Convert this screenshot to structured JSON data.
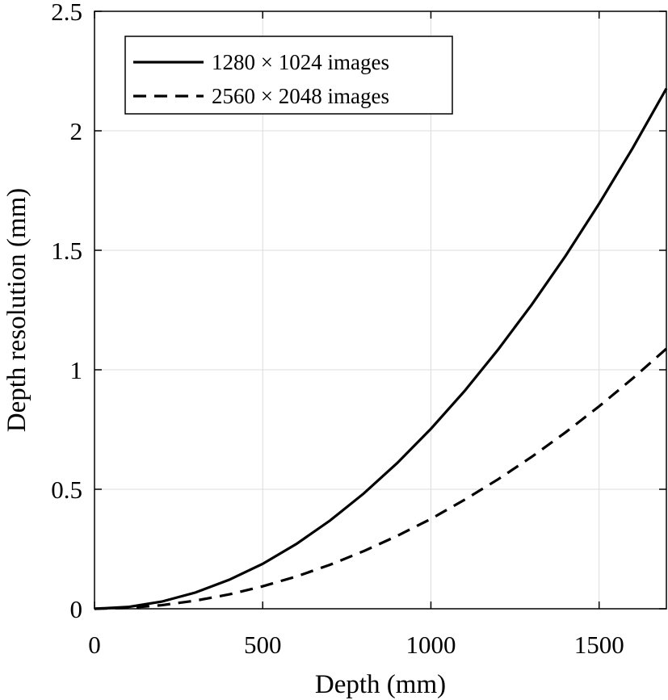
{
  "chart_data": {
    "type": "line",
    "title": "",
    "xlabel": "Depth (mm)",
    "ylabel": "Depth resolution (mm)",
    "xlim": [
      0,
      1700
    ],
    "ylim": [
      0,
      2.5
    ],
    "xticks": [
      0,
      500,
      1000,
      1500
    ],
    "yticks": [
      0,
      0.5,
      1,
      1.5,
      2,
      2.5
    ],
    "xtick_labels": [
      "0",
      "500",
      "1000",
      "1500"
    ],
    "ytick_labels": [
      "0",
      "0.5",
      "1",
      "1.5",
      "2",
      "2.5"
    ],
    "grid": true,
    "legend_position": "top-left",
    "series": [
      {
        "name": "1280 × 1024 images",
        "style": "solid",
        "color": "#000000",
        "x": [
          0,
          100,
          200,
          300,
          400,
          500,
          600,
          700,
          800,
          900,
          1000,
          1100,
          1200,
          1300,
          1400,
          1500,
          1600,
          1700
        ],
        "y": [
          0,
          0.0075,
          0.03,
          0.068,
          0.121,
          0.188,
          0.271,
          0.369,
          0.482,
          0.61,
          0.753,
          0.911,
          1.085,
          1.273,
          1.476,
          1.695,
          1.928,
          2.177
        ]
      },
      {
        "name": "2560 × 2048 images",
        "style": "dashed",
        "color": "#000000",
        "x": [
          0,
          100,
          200,
          300,
          400,
          500,
          600,
          700,
          800,
          900,
          1000,
          1100,
          1200,
          1300,
          1400,
          1500,
          1600,
          1700
        ],
        "y": [
          0,
          0.0038,
          0.015,
          0.034,
          0.06,
          0.094,
          0.135,
          0.184,
          0.241,
          0.305,
          0.376,
          0.456,
          0.542,
          0.636,
          0.738,
          0.847,
          0.964,
          1.088
        ]
      }
    ]
  }
}
